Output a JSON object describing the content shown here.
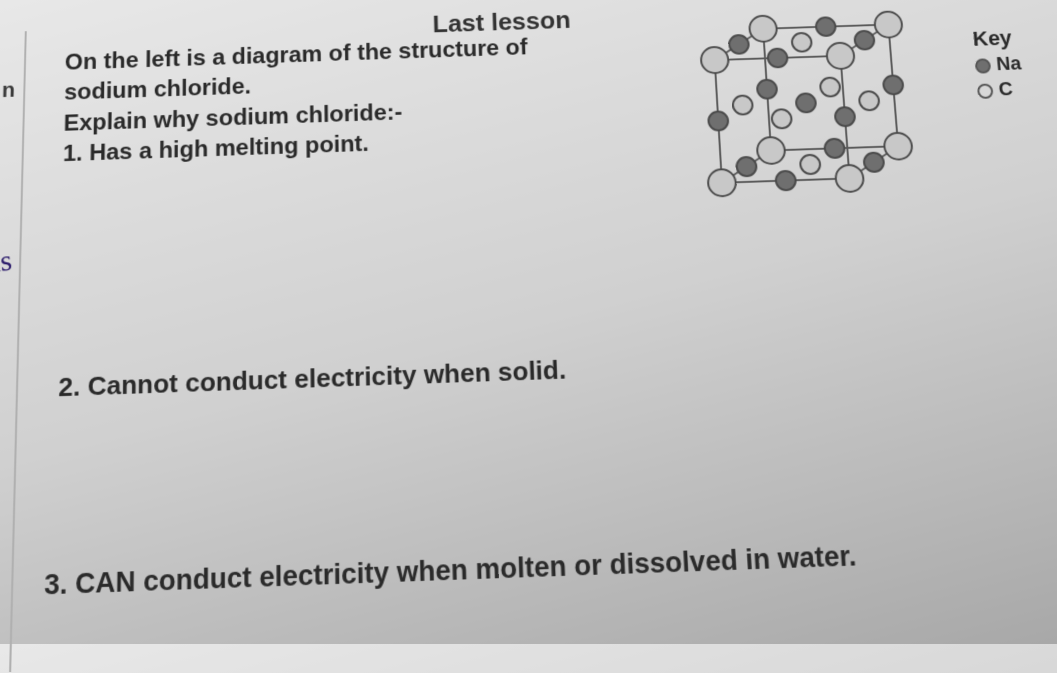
{
  "header": {
    "title_partial": "Last lesson"
  },
  "edge": {
    "left_letter_1": "n",
    "handwritten": "ns"
  },
  "intro": {
    "line1": "On the left is a diagram of the structure of",
    "line2": "sodium chloride.",
    "line3": "Explain why sodium chloride:-"
  },
  "questions": {
    "q1": "1. Has a high melting point.",
    "q2": "2. Cannot conduct electricity when solid.",
    "q3": "3. CAN conduct electricity when molten or dissolved in water."
  },
  "key": {
    "title": "Key",
    "item1_label": "Na",
    "item1_color": "#6f6f6f",
    "item2_label": "C",
    "item2_color": "#d8d8d8"
  },
  "diagram": {
    "background": "#cfcfcf",
    "line_color": "#5a5a5a",
    "node_stroke": "#4a4a4a",
    "dark_fill": "#6f6f6f",
    "light_fill": "#c8c8c8",
    "size": 210
  }
}
